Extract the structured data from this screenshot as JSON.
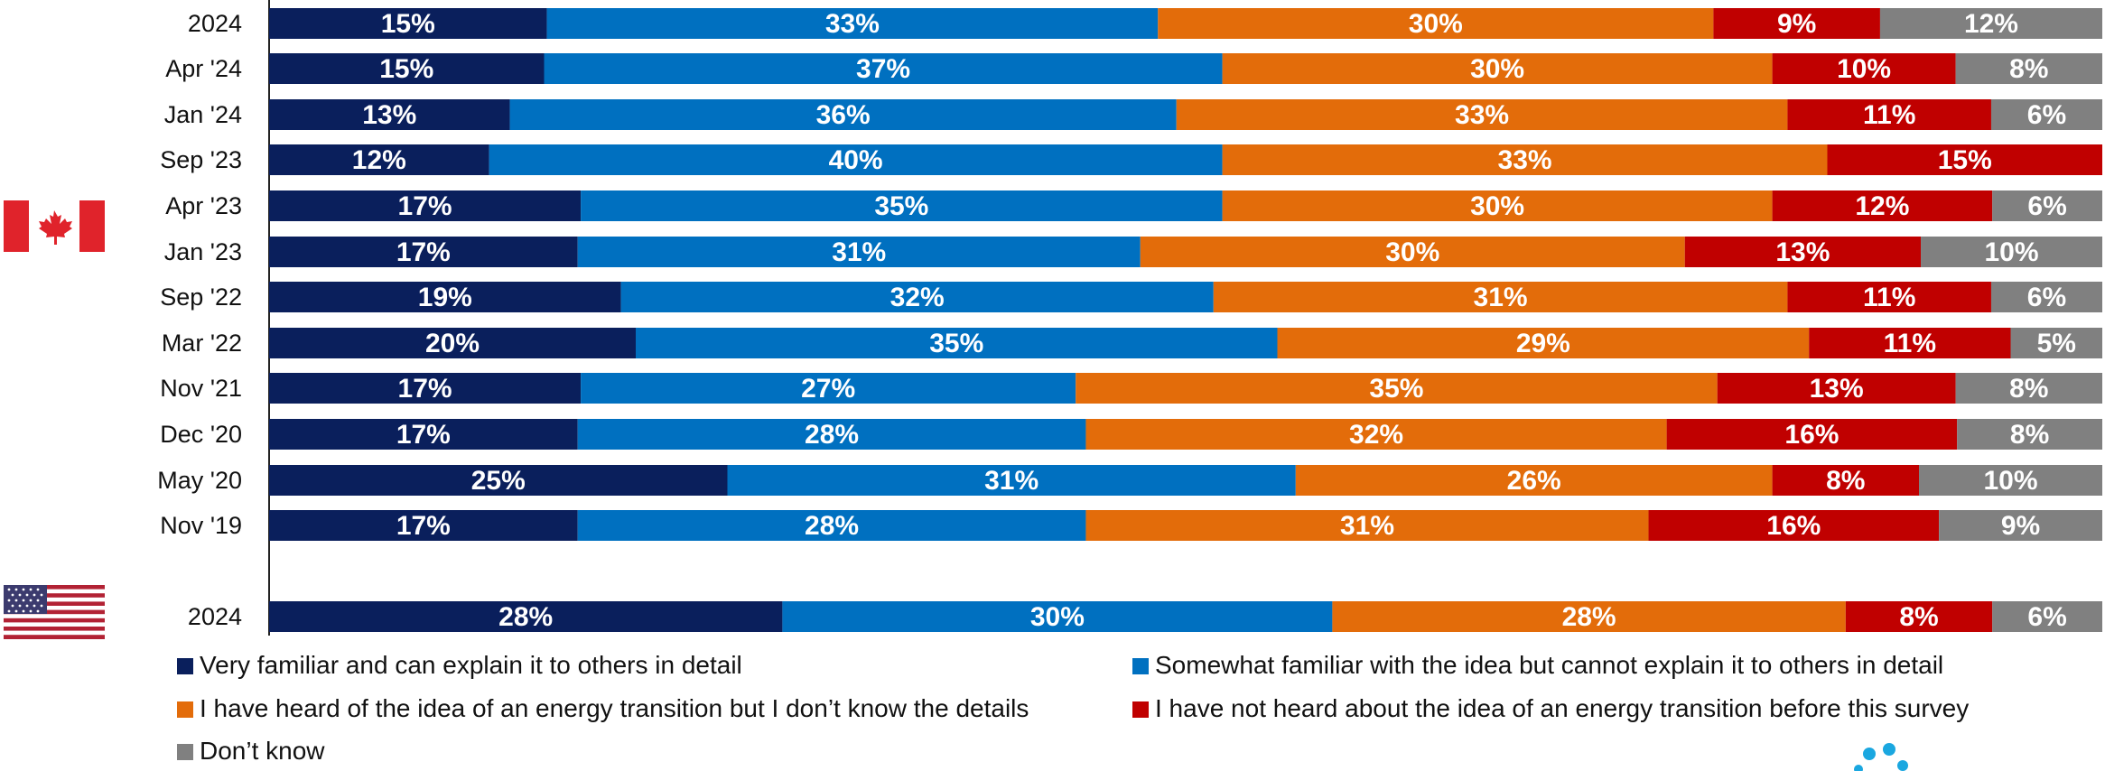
{
  "chart_data": {
    "type": "bar",
    "orientation": "horizontal",
    "stacked": true,
    "value_format": "percent",
    "groups": [
      {
        "country": "Canada",
        "flag_icon": "canada-flag-icon",
        "categories": [
          "2024",
          "Apr '24",
          "Jan '24",
          "Sep '23",
          "Apr '23",
          "Jan '23",
          "Sep '22",
          "Mar '22",
          "Nov '21",
          "Dec '20",
          "May '20",
          "Nov '19"
        ]
      },
      {
        "country": "United States",
        "flag_icon": "usa-flag-icon",
        "categories": [
          "2024"
        ]
      }
    ],
    "categories": [
      "2024",
      "Apr '24",
      "Jan '24",
      "Sep '23",
      "Apr '23",
      "Jan '23",
      "Sep '22",
      "Mar '22",
      "Nov '21",
      "Dec '20",
      "May '20",
      "Nov '19",
      "2024"
    ],
    "series": [
      {
        "name": "Very familiar and can explain it to others in detail",
        "color": "#0a1f5c",
        "values": [
          15,
          15,
          13,
          12,
          17,
          17,
          19,
          20,
          17,
          17,
          25,
          17,
          28
        ]
      },
      {
        "name": "Somewhat familiar with the idea but cannot explain it to others in detail",
        "color": "#0070c0",
        "values": [
          33,
          37,
          36,
          40,
          35,
          31,
          32,
          35,
          27,
          28,
          31,
          28,
          30
        ]
      },
      {
        "name": "I have heard of the idea of an energy transition but I don’t know the details",
        "color": "#e36c0a",
        "values": [
          30,
          30,
          33,
          33,
          30,
          30,
          31,
          29,
          35,
          32,
          26,
          31,
          28
        ]
      },
      {
        "name": "I have not heard about the idea of an energy transition before this survey",
        "color": "#c00000",
        "values": [
          9,
          10,
          11,
          15,
          12,
          13,
          11,
          11,
          13,
          16,
          8,
          16,
          8
        ]
      },
      {
        "name": "Don’t know",
        "color": "#808080",
        "values": [
          12,
          8,
          6,
          0,
          6,
          10,
          6,
          5,
          8,
          8,
          10,
          9,
          6
        ]
      }
    ],
    "xlim": [
      0,
      100
    ],
    "grid": false,
    "legend_position": "bottom",
    "title": "",
    "xlabel": "",
    "ylabel": ""
  }
}
